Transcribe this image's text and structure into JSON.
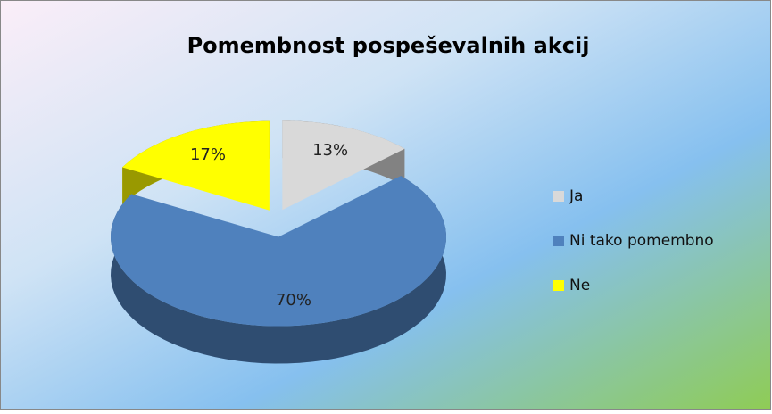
{
  "chart_data": {
    "type": "pie",
    "title": "Pomembnost pospeševalnih akcij",
    "categories": [
      "Ja",
      "Ni tako pomembno",
      "Ne"
    ],
    "values": [
      13,
      70,
      17
    ],
    "value_labels": [
      "13%",
      "70%",
      "17%"
    ],
    "colors": [
      "#d9d9d9",
      "#4f81bd",
      "#ffff00"
    ],
    "legend": "right"
  }
}
